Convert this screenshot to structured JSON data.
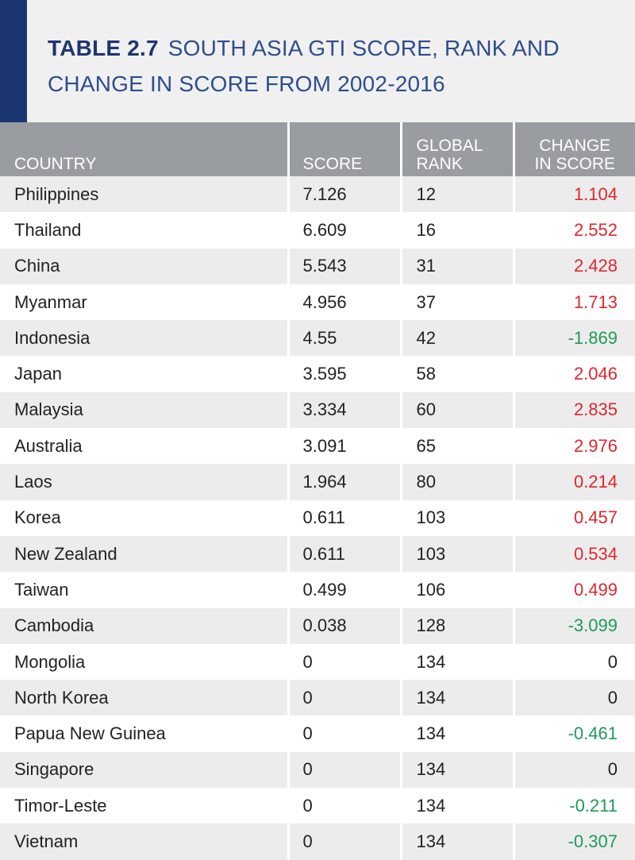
{
  "header": {
    "label": "TABLE 2.7",
    "title": "SOUTH ASIA GTI SCORE, RANK AND CHANGE IN SCORE FROM 2002-2016"
  },
  "table": {
    "columns": {
      "country": "COUNTRY",
      "score": "SCORE",
      "rank_line1": "GLOBAL",
      "rank_line2": "RANK",
      "change_line1": "CHANGE",
      "change_line2": "IN SCORE"
    },
    "rows": [
      {
        "country": "Philippines",
        "score": "7.126",
        "rank": "12",
        "change": "1.104"
      },
      {
        "country": "Thailand",
        "score": "6.609",
        "rank": "16",
        "change": "2.552"
      },
      {
        "country": "China",
        "score": "5.543",
        "rank": "31",
        "change": "2.428"
      },
      {
        "country": "Myanmar",
        "score": "4.956",
        "rank": "37",
        "change": "1.713"
      },
      {
        "country": "Indonesia",
        "score": "4.55",
        "rank": "42",
        "change": "-1.869"
      },
      {
        "country": "Japan",
        "score": "3.595",
        "rank": "58",
        "change": "2.046"
      },
      {
        "country": "Malaysia",
        "score": "3.334",
        "rank": "60",
        "change": "2.835"
      },
      {
        "country": "Australia",
        "score": "3.091",
        "rank": "65",
        "change": "2.976"
      },
      {
        "country": "Laos",
        "score": "1.964",
        "rank": "80",
        "change": "0.214"
      },
      {
        "country": "Korea",
        "score": "0.611",
        "rank": "103",
        "change": "0.457"
      },
      {
        "country": "New Zealand",
        "score": "0.611",
        "rank": "103",
        "change": "0.534"
      },
      {
        "country": "Taiwan",
        "score": "0.499",
        "rank": "106",
        "change": "0.499"
      },
      {
        "country": "Cambodia",
        "score": "0.038",
        "rank": "128",
        "change": "-3.099"
      },
      {
        "country": "Mongolia",
        "score": "0",
        "rank": "134",
        "change": "0"
      },
      {
        "country": "North Korea",
        "score": "0",
        "rank": "134",
        "change": "0"
      },
      {
        "country": "Papua New Guinea",
        "score": "0",
        "rank": "134",
        "change": "-0.461"
      },
      {
        "country": "Singapore",
        "score": "0",
        "rank": "134",
        "change": "0"
      },
      {
        "country": "Timor-Leste",
        "score": "0",
        "rank": "134",
        "change": "-0.211"
      },
      {
        "country": "Vietnam",
        "score": "0",
        "rank": "134",
        "change": "-0.307"
      }
    ]
  },
  "colors": {
    "header_bar": "#1b3670",
    "title_text": "#2e4d8c",
    "column_header_bg": "#999da1",
    "increase": "#e0262e",
    "decrease": "#1e9a5a"
  }
}
